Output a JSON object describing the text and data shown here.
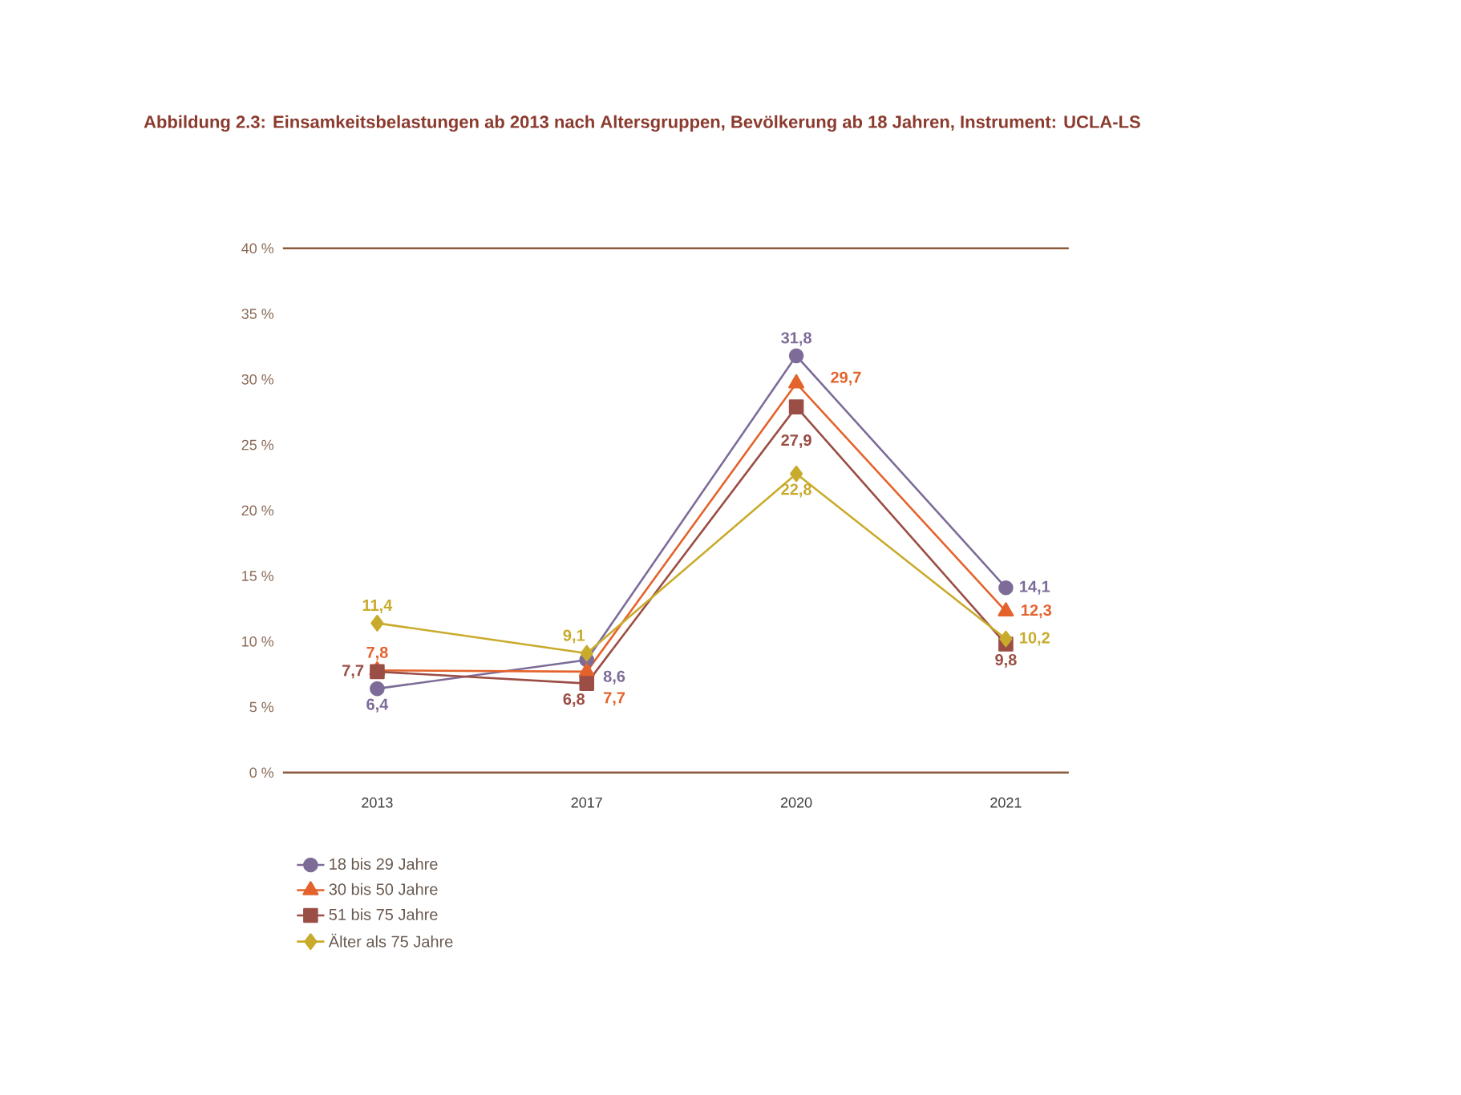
{
  "chart_data": {
    "type": "line",
    "title": "Abbildung 2.3: Einsamkeitsbelastungen ab 2013 nach Altersgruppen, Bevölkerung ab 18 Jahren, Instrument: UCLA-LS",
    "categories": [
      "2013",
      "2017",
      "2020",
      "2021"
    ],
    "ylim": [
      0,
      40
    ],
    "yticks": [
      {
        "value": 0,
        "label": "0 %"
      },
      {
        "value": 5,
        "label": "5 %"
      },
      {
        "value": 10,
        "label": "10 %"
      },
      {
        "value": 15,
        "label": "15 %"
      },
      {
        "value": 20,
        "label": "20 %"
      },
      {
        "value": 25,
        "label": "25 %"
      },
      {
        "value": 30,
        "label": "30 %"
      },
      {
        "value": 35,
        "label": "35 %"
      },
      {
        "value": 40,
        "label": "40 %"
      }
    ],
    "legend": "bottom left",
    "line_style": "solid",
    "series": [
      {
        "name": "18 bis 29 Jahre",
        "color": "#7d6c98",
        "marker": "circle",
        "values": [
          6.4,
          8.6,
          31.8,
          14.1
        ],
        "value_labels": [
          "6,4",
          "8,6",
          "31,8",
          "14,1"
        ]
      },
      {
        "name": "30 bis 50 Jahre",
        "color": "#e4632c",
        "marker": "triangle",
        "values": [
          7.8,
          7.7,
          29.7,
          12.3
        ],
        "value_labels": [
          "7,8",
          "7,7",
          "29,7",
          "12,3"
        ]
      },
      {
        "name": "51 bis 75 Jahre",
        "color": "#9b4e45",
        "marker": "square",
        "values": [
          7.7,
          6.8,
          27.9,
          9.8
        ],
        "value_labels": [
          "7,7",
          "6,8",
          "27,9",
          "9,8"
        ]
      },
      {
        "name": "Älter als 75 Jahre",
        "color": "#c9ab2c",
        "marker": "diamond",
        "values": [
          11.4,
          9.1,
          22.8,
          10.2
        ],
        "value_labels": [
          "11,4",
          "9,1",
          "22,8",
          "10,2"
        ]
      }
    ]
  }
}
